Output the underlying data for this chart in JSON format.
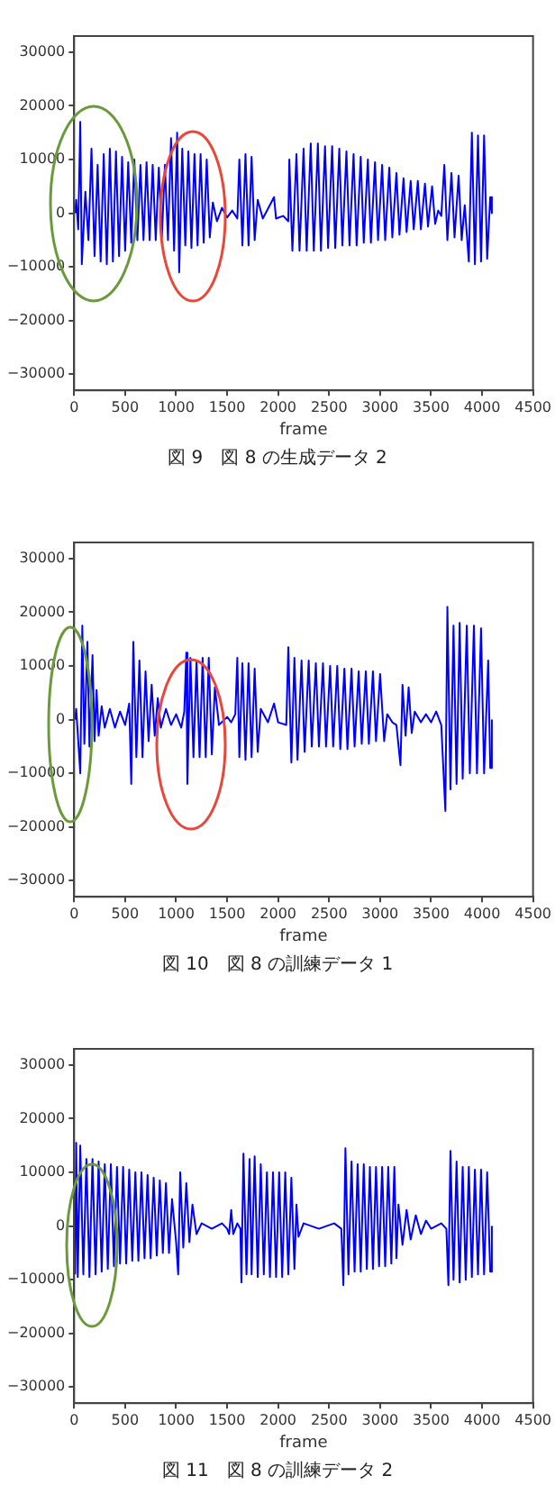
{
  "chart_data": [
    {
      "type": "line",
      "xlabel": "frame",
      "annotations": [
        "図 9　図 8 の生成データ 2"
      ],
      "xlim": [
        0,
        4500
      ],
      "xticks": [
        0,
        500,
        1000,
        1500,
        2000,
        2500,
        3000,
        3500,
        4000,
        4500
      ],
      "ylim": [
        -33000,
        33000
      ],
      "yticks": [
        -30000,
        -20000,
        -10000,
        0,
        10000,
        20000,
        30000
      ],
      "series": [
        {
          "color": "#0000ff",
          "x": [
            10,
            20,
            40,
            60,
            75,
            110,
            140,
            170,
            200,
            230,
            260,
            290,
            320,
            350,
            380,
            410,
            440,
            470,
            500,
            530,
            560,
            590,
            620,
            650,
            680,
            710,
            740,
            770,
            800,
            830,
            860,
            890,
            920,
            950,
            980,
            1010,
            1030,
            1060,
            1090,
            1120,
            1150,
            1180,
            1210,
            1240,
            1270,
            1300,
            1330,
            1360,
            1400,
            1450,
            1500,
            1550,
            1600,
            1620,
            1650,
            1680,
            1710,
            1740,
            1770,
            1800,
            1850,
            1900,
            1960,
            1980,
            2050,
            2100,
            2110,
            2140,
            2180,
            2210,
            2250,
            2280,
            2320,
            2350,
            2390,
            2420,
            2460,
            2490,
            2530,
            2560,
            2600,
            2630,
            2670,
            2700,
            2740,
            2770,
            2810,
            2840,
            2880,
            2910,
            2950,
            2980,
            3020,
            3050,
            3090,
            3120,
            3160,
            3190,
            3230,
            3260,
            3300,
            3330,
            3370,
            3400,
            3440,
            3470,
            3510,
            3540,
            3570,
            3600,
            3630,
            3660,
            3700,
            3730,
            3770,
            3800,
            3830,
            3870,
            3900,
            3930,
            3960,
            3990,
            4020,
            4050,
            4080,
            4096
          ],
          "values": [
            0,
            2500,
            -3000,
            17000,
            -9500,
            4000,
            -5000,
            12000,
            -8000,
            9000,
            -9000,
            11000,
            -9500,
            12000,
            -9000,
            11500,
            -8000,
            10500,
            -7000,
            9500,
            -5500,
            10000,
            -5000,
            9000,
            -5000,
            9500,
            -5000,
            9000,
            -5000,
            8500,
            -4500,
            9000,
            -5000,
            14000,
            -7000,
            15000,
            -11000,
            12000,
            -6000,
            11500,
            -6500,
            11000,
            -6000,
            11000,
            -5500,
            10000,
            -4500,
            2000,
            -1500,
            1000,
            -800,
            500,
            -1000,
            10000,
            -6000,
            11000,
            -6000,
            10500,
            -5000,
            2500,
            -1000,
            800,
            3000,
            -1000,
            -500,
            -1500,
            10000,
            -7000,
            11000,
            -7000,
            12000,
            -7000,
            13000,
            -7000,
            13000,
            -7000,
            12500,
            -6500,
            12500,
            -6500,
            12000,
            -6000,
            11500,
            -6000,
            11000,
            -6000,
            10500,
            -5500,
            10000,
            -5500,
            9500,
            -5000,
            9000,
            -5000,
            8500,
            -4500,
            7500,
            -4000,
            6500,
            -3500,
            6000,
            -3000,
            6000,
            -3000,
            5500,
            -2500,
            5000,
            -2000,
            500,
            -500,
            9000,
            -5000,
            7500,
            -4500,
            7000,
            -5000,
            1500,
            -9000,
            15000,
            -9500,
            14500,
            -9000,
            14500,
            -8500,
            3000,
            0
          ]
        }
      ]
    },
    {
      "type": "line",
      "xlabel": "frame",
      "annotations": [
        "図 10　図 8 の訓練データ 1"
      ],
      "xlim": [
        0,
        4500
      ],
      "xticks": [
        0,
        500,
        1000,
        1500,
        2000,
        2500,
        3000,
        3500,
        4000,
        4500
      ],
      "ylim": [
        -33000,
        33000
      ],
      "yticks": [
        -30000,
        -20000,
        -10000,
        0,
        10000,
        20000,
        30000
      ],
      "series": [
        {
          "color": "#0000ff",
          "x": [
            10,
            20,
            40,
            60,
            80,
            100,
            130,
            150,
            180,
            200,
            220,
            240,
            270,
            300,
            350,
            400,
            450,
            500,
            540,
            560,
            580,
            610,
            640,
            670,
            700,
            730,
            760,
            790,
            820,
            850,
            900,
            950,
            1000,
            1050,
            1080,
            1100,
            1110,
            1140,
            1170,
            1200,
            1230,
            1260,
            1290,
            1320,
            1350,
            1380,
            1420,
            1500,
            1540,
            1580,
            1600,
            1620,
            1650,
            1680,
            1710,
            1740,
            1770,
            1800,
            1830,
            1900,
            1960,
            2000,
            2080,
            2100,
            2130,
            2160,
            2190,
            2230,
            2260,
            2300,
            2330,
            2370,
            2400,
            2440,
            2470,
            2510,
            2540,
            2580,
            2610,
            2650,
            2680,
            2720,
            2750,
            2790,
            2820,
            2860,
            2890,
            2930,
            2960,
            3000,
            3040,
            3070,
            3120,
            3160,
            3200,
            3220,
            3250,
            3280,
            3310,
            3340,
            3400,
            3450,
            3500,
            3550,
            3600,
            3640,
            3660,
            3690,
            3720,
            3750,
            3780,
            3810,
            3850,
            3880,
            3920,
            3950,
            3990,
            4020,
            4060,
            4080,
            4096
          ],
          "values": [
            0,
            2000,
            -4000,
            -10000,
            17500,
            -4500,
            14500,
            -5000,
            12000,
            -4000,
            5500,
            -3000,
            2500,
            -1500,
            2000,
            -1500,
            1500,
            -1000,
            3000,
            -12000,
            14500,
            -7000,
            11000,
            -7000,
            9000,
            -4000,
            6500,
            -3000,
            4000,
            -1500,
            2000,
            -1000,
            1000,
            -1500,
            1500,
            12500,
            -12000,
            11500,
            -7000,
            11000,
            -7000,
            11500,
            -7000,
            11500,
            -6500,
            6000,
            -1000,
            500,
            -500,
            1000,
            11500,
            -7000,
            10500,
            -7500,
            10500,
            -7000,
            9500,
            -6000,
            2000,
            -500,
            3000,
            -500,
            -1000,
            13500,
            -8000,
            11500,
            -7500,
            11000,
            -6000,
            11000,
            -5000,
            10500,
            -5000,
            10500,
            -5000,
            10000,
            -5000,
            10000,
            -5500,
            9500,
            -5500,
            9500,
            -5000,
            9000,
            -4500,
            9000,
            -4500,
            9000,
            -4000,
            8500,
            -4000,
            1000,
            -500,
            -1000,
            -8500,
            6500,
            -3000,
            6000,
            -2500,
            1500,
            -500,
            1000,
            -500,
            1500,
            -1000,
            -17000,
            21000,
            -13000,
            17500,
            -12000,
            18000,
            -11000,
            17500,
            -10000,
            17500,
            -10000,
            17000,
            -10000,
            11000,
            -9000,
            0
          ]
        }
      ]
    },
    {
      "type": "line",
      "xlabel": "frame",
      "annotations": [
        "図 11　図 8 の訓練データ 2"
      ],
      "xlim": [
        0,
        4500
      ],
      "xticks": [
        0,
        500,
        1000,
        1500,
        2000,
        2500,
        3000,
        3500,
        4000,
        4500
      ],
      "ylim": [
        -33000,
        33000
      ],
      "yticks": [
        -30000,
        -20000,
        -10000,
        0,
        10000,
        20000,
        30000
      ],
      "series": [
        {
          "color": "#0000ff",
          "x": [
            10,
            20,
            35,
            60,
            90,
            120,
            150,
            180,
            210,
            240,
            270,
            300,
            330,
            360,
            390,
            420,
            450,
            480,
            510,
            540,
            570,
            600,
            630,
            660,
            690,
            720,
            750,
            780,
            810,
            840,
            870,
            900,
            930,
            960,
            1000,
            1020,
            1040,
            1070,
            1100,
            1130,
            1160,
            1200,
            1250,
            1350,
            1450,
            1500,
            1520,
            1540,
            1560,
            1600,
            1630,
            1640,
            1660,
            1690,
            1720,
            1740,
            1770,
            1800,
            1830,
            1860,
            1890,
            1920,
            1950,
            1980,
            2010,
            2040,
            2070,
            2100,
            2130,
            2160,
            2180,
            2200,
            2250,
            2400,
            2550,
            2620,
            2640,
            2660,
            2690,
            2720,
            2750,
            2780,
            2810,
            2840,
            2870,
            2900,
            2930,
            2960,
            2990,
            3020,
            3050,
            3080,
            3110,
            3140,
            3160,
            3180,
            3220,
            3260,
            3300,
            3350,
            3400,
            3450,
            3500,
            3600,
            3650,
            3670,
            3690,
            3720,
            3750,
            3780,
            3810,
            3840,
            3870,
            3900,
            3930,
            3960,
            3990,
            4020,
            4050,
            4080,
            4096
          ],
          "values": [
            -9000,
            15500,
            -9500,
            15000,
            -9000,
            12500,
            -9500,
            12500,
            -9000,
            12000,
            -8500,
            11500,
            -8000,
            11500,
            -7500,
            11000,
            -7000,
            11000,
            -7000,
            10500,
            -6500,
            10000,
            -6500,
            10000,
            -6000,
            9500,
            -6000,
            9000,
            -5500,
            8500,
            -5000,
            8000,
            -5000,
            5000,
            -3000,
            -9000,
            10000,
            -4000,
            8000,
            -3000,
            4000,
            -1500,
            500,
            -500,
            500,
            -500,
            -1500,
            3000,
            -1500,
            500,
            -500,
            -10500,
            13500,
            -9000,
            12500,
            -9000,
            13000,
            -9500,
            11500,
            -9000,
            10000,
            -9500,
            10000,
            -9500,
            10000,
            -9500,
            10000,
            -9000,
            9000,
            -8000,
            4000,
            -2000,
            500,
            -500,
            500,
            -500,
            -11000,
            14500,
            -9000,
            12000,
            -8500,
            11500,
            -8500,
            11500,
            -8000,
            11000,
            -8000,
            11000,
            -7500,
            11000,
            -7500,
            11000,
            -7000,
            11000,
            -6000,
            4000,
            -3500,
            3000,
            -2500,
            2000,
            -1500,
            1000,
            -500,
            500,
            -500,
            -11000,
            14000,
            -10000,
            12000,
            -10500,
            11000,
            -10000,
            11000,
            -9500,
            10500,
            -9000,
            10500,
            -9000,
            10000,
            -8500,
            0
          ]
        }
      ]
    }
  ]
}
